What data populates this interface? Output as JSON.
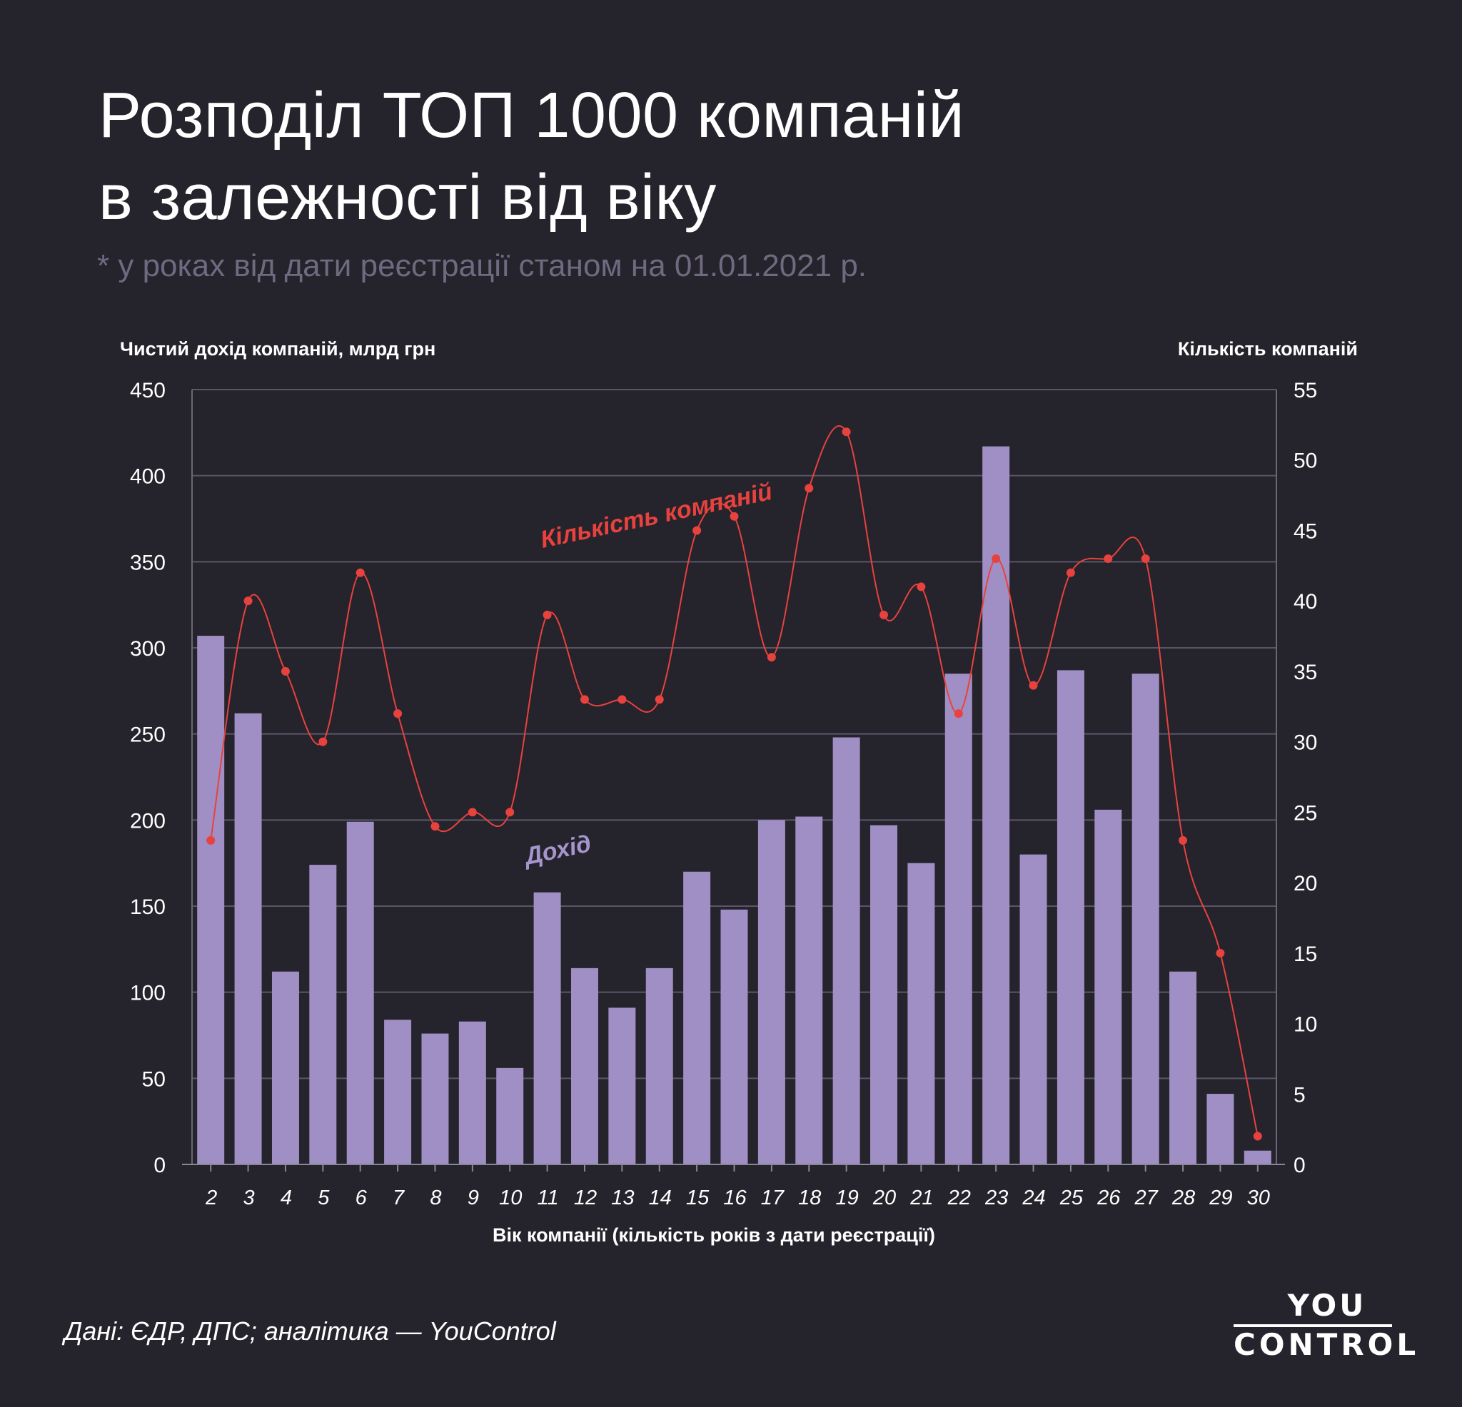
{
  "title_lines": [
    "Розподіл ТОП 1000 компаній",
    "в залежності від віку"
  ],
  "subtitle": "* у роках від дати реєстрації станом на 01.01.2021 р.",
  "source": "Дані: ЄДР, ДПС; аналітика — YouControl",
  "logo": {
    "top": "YOU",
    "bottom": "CONTROL"
  },
  "colors": {
    "background": "#25232b",
    "bars": "#a08fc4",
    "line": "#e8423f",
    "grid": "#5a5668"
  },
  "chart_data": {
    "type": "bar",
    "xlabel": "Вік компанії (кількість років з дати реєстрації)",
    "ylabel": "Чистий дохід компаній, млрд грн",
    "ylabel_right": "Кількість компаній",
    "ylim": [
      0,
      450
    ],
    "ylim_right": [
      0,
      55
    ],
    "yticks": [
      0,
      50,
      100,
      150,
      200,
      250,
      300,
      350,
      400,
      450
    ],
    "yticks_right": [
      0,
      5,
      10,
      15,
      20,
      25,
      30,
      35,
      40,
      45,
      50,
      55
    ],
    "grid": true,
    "categories": [
      "2",
      "3",
      "4",
      "5",
      "6",
      "7",
      "8",
      "9",
      "10",
      "11",
      "12",
      "13",
      "14",
      "15",
      "16",
      "17",
      "18",
      "19",
      "20",
      "21",
      "22",
      "23",
      "24",
      "25",
      "26",
      "27",
      "28",
      "29",
      "30"
    ],
    "series": [
      {
        "name": "Дохід",
        "type": "bar",
        "axis": "left",
        "values": [
          307,
          262,
          112,
          174,
          199,
          84,
          76,
          83,
          56,
          158,
          114,
          91,
          114,
          170,
          148,
          200,
          202,
          248,
          197,
          175,
          285,
          417,
          180,
          287,
          206,
          285,
          112,
          41,
          8
        ]
      },
      {
        "name": "Кількість компаній",
        "type": "line",
        "axis": "right",
        "values": [
          23,
          40,
          35,
          30,
          42,
          32,
          24,
          25,
          25,
          39,
          33,
          33,
          33,
          45,
          46,
          36,
          48,
          52,
          39,
          41,
          32,
          43,
          34,
          42,
          43,
          43,
          23,
          15,
          2
        ]
      }
    ]
  }
}
